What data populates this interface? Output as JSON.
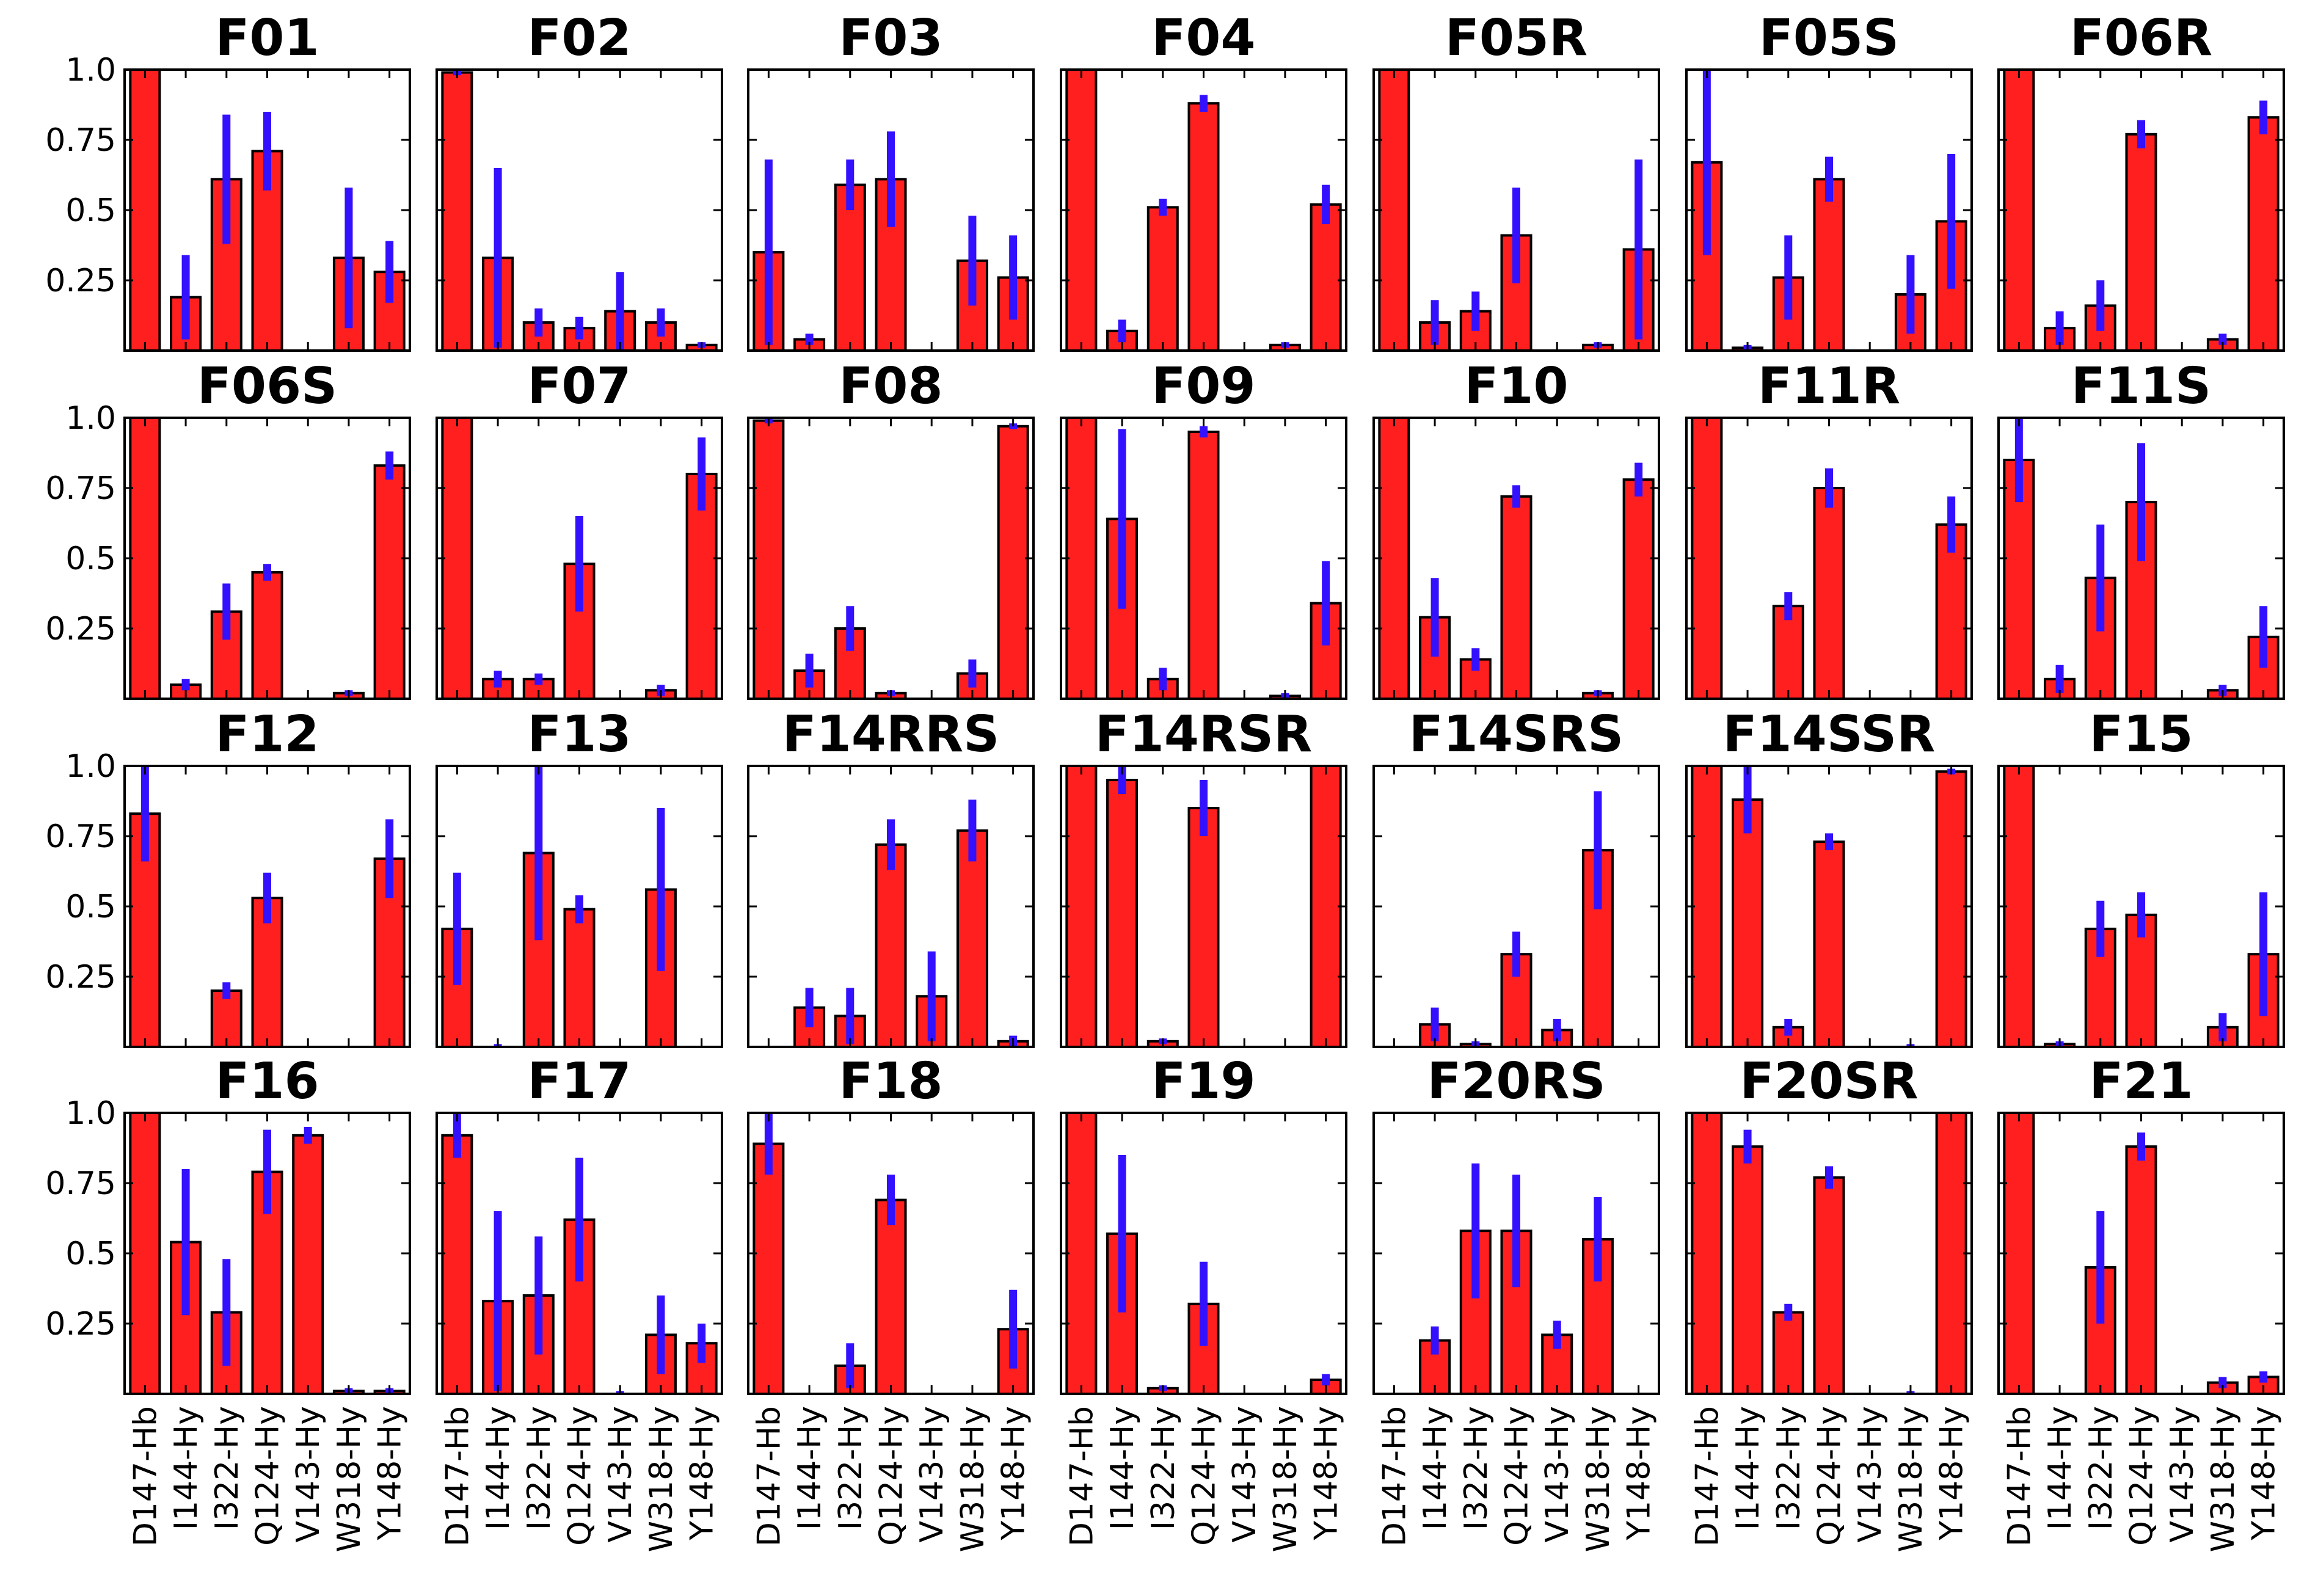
{
  "figure": {
    "layout": {
      "rows": 4,
      "cols": 7
    },
    "colors": {
      "bar": "#ff1f1f",
      "bar_edge": "#000000",
      "error": "#3311ff",
      "axes": "#000000"
    },
    "yticks": [
      0.25,
      0.5,
      0.75,
      1.0
    ],
    "ytick_labels": [
      "0.25",
      "0.5",
      "0.75",
      "1.0"
    ],
    "categories": [
      "D147-Hb",
      "I144-Hy",
      "I322-Hy",
      "Q124-Hy",
      "V143-Hy",
      "W318-Hy",
      "Y148-Hy"
    ]
  },
  "chart_data": [
    {
      "type": "bar",
      "title": "F01",
      "ylim": [
        0,
        1
      ],
      "categories": [
        "D147-Hb",
        "I144-Hy",
        "I322-Hy",
        "Q124-Hy",
        "V143-Hy",
        "W318-Hy",
        "Y148-Hy"
      ],
      "values": [
        1.0,
        0.19,
        0.61,
        0.71,
        0.0,
        0.33,
        0.28
      ],
      "errors": [
        0.0,
        0.15,
        0.23,
        0.14,
        0.0,
        0.25,
        0.11
      ]
    },
    {
      "type": "bar",
      "title": "F02",
      "ylim": [
        0,
        1
      ],
      "categories": [
        "D147-Hb",
        "I144-Hy",
        "I322-Hy",
        "Q124-Hy",
        "V143-Hy",
        "W318-Hy",
        "Y148-Hy"
      ],
      "values": [
        0.99,
        0.33,
        0.1,
        0.08,
        0.14,
        0.1,
        0.02
      ],
      "errors": [
        0.01,
        0.32,
        0.05,
        0.04,
        0.14,
        0.05,
        0.01
      ]
    },
    {
      "type": "bar",
      "title": "F03",
      "ylim": [
        0,
        1
      ],
      "categories": [
        "D147-Hb",
        "I144-Hy",
        "I322-Hy",
        "Q124-Hy",
        "V143-Hy",
        "W318-Hy",
        "Y148-Hy"
      ],
      "values": [
        0.35,
        0.04,
        0.59,
        0.61,
        0.0,
        0.32,
        0.26
      ],
      "errors": [
        0.33,
        0.02,
        0.09,
        0.17,
        0.0,
        0.16,
        0.15
      ]
    },
    {
      "type": "bar",
      "title": "F04",
      "ylim": [
        0,
        1
      ],
      "categories": [
        "D147-Hb",
        "I144-Hy",
        "I322-Hy",
        "Q124-Hy",
        "V143-Hy",
        "W318-Hy",
        "Y148-Hy"
      ],
      "values": [
        1.0,
        0.07,
        0.51,
        0.88,
        0.0,
        0.02,
        0.52
      ],
      "errors": [
        0.0,
        0.04,
        0.03,
        0.03,
        0.0,
        0.01,
        0.07
      ]
    },
    {
      "type": "bar",
      "title": "F05R",
      "ylim": [
        0,
        1
      ],
      "categories": [
        "D147-Hb",
        "I144-Hy",
        "I322-Hy",
        "Q124-Hy",
        "V143-Hy",
        "W318-Hy",
        "Y148-Hy"
      ],
      "values": [
        1.0,
        0.1,
        0.14,
        0.41,
        0.0,
        0.02,
        0.36
      ],
      "errors": [
        0.0,
        0.08,
        0.07,
        0.17,
        0.0,
        0.01,
        0.32
      ]
    },
    {
      "type": "bar",
      "title": "F05S",
      "ylim": [
        0,
        1
      ],
      "categories": [
        "D147-Hb",
        "I144-Hy",
        "I322-Hy",
        "Q124-Hy",
        "V143-Hy",
        "W318-Hy",
        "Y148-Hy"
      ],
      "values": [
        0.67,
        0.01,
        0.26,
        0.61,
        0.0,
        0.2,
        0.46
      ],
      "errors": [
        0.33,
        0.01,
        0.15,
        0.08,
        0.0,
        0.14,
        0.24
      ]
    },
    {
      "type": "bar",
      "title": "F06R",
      "ylim": [
        0,
        1
      ],
      "categories": [
        "D147-Hb",
        "I144-Hy",
        "I322-Hy",
        "Q124-Hy",
        "V143-Hy",
        "W318-Hy",
        "Y148-Hy"
      ],
      "values": [
        1.0,
        0.08,
        0.16,
        0.77,
        0.0,
        0.04,
        0.83
      ],
      "errors": [
        0.0,
        0.06,
        0.09,
        0.05,
        0.0,
        0.02,
        0.06
      ]
    },
    {
      "type": "bar",
      "title": "F06S",
      "ylim": [
        0,
        1
      ],
      "categories": [
        "D147-Hb",
        "I144-Hy",
        "I322-Hy",
        "Q124-Hy",
        "V143-Hy",
        "W318-Hy",
        "Y148-Hy"
      ],
      "values": [
        1.0,
        0.05,
        0.31,
        0.45,
        0.0,
        0.02,
        0.83
      ],
      "errors": [
        0.0,
        0.02,
        0.1,
        0.03,
        0.0,
        0.01,
        0.05
      ]
    },
    {
      "type": "bar",
      "title": "F07",
      "ylim": [
        0,
        1
      ],
      "categories": [
        "D147-Hb",
        "I144-Hy",
        "I322-Hy",
        "Q124-Hy",
        "V143-Hy",
        "W318-Hy",
        "Y148-Hy"
      ],
      "values": [
        1.0,
        0.07,
        0.07,
        0.48,
        0.0,
        0.03,
        0.8
      ],
      "errors": [
        0.0,
        0.03,
        0.02,
        0.17,
        0.0,
        0.02,
        0.13
      ]
    },
    {
      "type": "bar",
      "title": "F08",
      "ylim": [
        0,
        1
      ],
      "categories": [
        "D147-Hb",
        "I144-Hy",
        "I322-Hy",
        "Q124-Hy",
        "V143-Hy",
        "W318-Hy",
        "Y148-Hy"
      ],
      "values": [
        0.99,
        0.1,
        0.25,
        0.02,
        0.0,
        0.09,
        0.97
      ],
      "errors": [
        0.01,
        0.06,
        0.08,
        0.01,
        0.0,
        0.05,
        0.01
      ]
    },
    {
      "type": "bar",
      "title": "F09",
      "ylim": [
        0,
        1
      ],
      "categories": [
        "D147-Hb",
        "I144-Hy",
        "I322-Hy",
        "Q124-Hy",
        "V143-Hy",
        "W318-Hy",
        "Y148-Hy"
      ],
      "values": [
        1.0,
        0.64,
        0.07,
        0.95,
        0.0,
        0.01,
        0.34
      ],
      "errors": [
        0.0,
        0.32,
        0.04,
        0.02,
        0.0,
        0.01,
        0.15
      ]
    },
    {
      "type": "bar",
      "title": "F10",
      "ylim": [
        0,
        1
      ],
      "categories": [
        "D147-Hb",
        "I144-Hy",
        "I322-Hy",
        "Q124-Hy",
        "V143-Hy",
        "W318-Hy",
        "Y148-Hy"
      ],
      "values": [
        1.0,
        0.29,
        0.14,
        0.72,
        0.0,
        0.02,
        0.78
      ],
      "errors": [
        0.0,
        0.14,
        0.04,
        0.04,
        0.0,
        0.01,
        0.06
      ]
    },
    {
      "type": "bar",
      "title": "F11R",
      "ylim": [
        0,
        1
      ],
      "categories": [
        "D147-Hb",
        "I144-Hy",
        "I322-Hy",
        "Q124-Hy",
        "V143-Hy",
        "W318-Hy",
        "Y148-Hy"
      ],
      "values": [
        1.0,
        0.0,
        0.33,
        0.75,
        0.0,
        0.0,
        0.62
      ],
      "errors": [
        0.0,
        0.0,
        0.05,
        0.07,
        0.0,
        0.0,
        0.1
      ]
    },
    {
      "type": "bar",
      "title": "F11S",
      "ylim": [
        0,
        1
      ],
      "categories": [
        "D147-Hb",
        "I144-Hy",
        "I322-Hy",
        "Q124-Hy",
        "V143-Hy",
        "W318-Hy",
        "Y148-Hy"
      ],
      "values": [
        0.85,
        0.07,
        0.43,
        0.7,
        0.0,
        0.03,
        0.22
      ],
      "errors": [
        0.15,
        0.05,
        0.19,
        0.21,
        0.0,
        0.02,
        0.11
      ]
    },
    {
      "type": "bar",
      "title": "F12",
      "ylim": [
        0,
        1
      ],
      "categories": [
        "D147-Hb",
        "I144-Hy",
        "I322-Hy",
        "Q124-Hy",
        "V143-Hy",
        "W318-Hy",
        "Y148-Hy"
      ],
      "values": [
        0.83,
        0.0,
        0.2,
        0.53,
        0.0,
        0.0,
        0.67
      ],
      "errors": [
        0.17,
        0.0,
        0.03,
        0.09,
        0.0,
        0.0,
        0.14
      ]
    },
    {
      "type": "bar",
      "title": "F13",
      "ylim": [
        0,
        1
      ],
      "categories": [
        "D147-Hb",
        "I144-Hy",
        "I322-Hy",
        "Q124-Hy",
        "V143-Hy",
        "W318-Hy",
        "Y148-Hy"
      ],
      "values": [
        0.42,
        0.0,
        0.69,
        0.49,
        0.0,
        0.56,
        0.0
      ],
      "errors": [
        0.2,
        0.01,
        0.31,
        0.05,
        0.0,
        0.29,
        0.0
      ]
    },
    {
      "type": "bar",
      "title": "F14RRS",
      "ylim": [
        0,
        1
      ],
      "categories": [
        "D147-Hb",
        "I144-Hy",
        "I322-Hy",
        "Q124-Hy",
        "V143-Hy",
        "W318-Hy",
        "Y148-Hy"
      ],
      "values": [
        0.0,
        0.14,
        0.11,
        0.72,
        0.18,
        0.77,
        0.02
      ],
      "errors": [
        0.0,
        0.07,
        0.1,
        0.09,
        0.16,
        0.11,
        0.02
      ]
    },
    {
      "type": "bar",
      "title": "F14RSR",
      "ylim": [
        0,
        1
      ],
      "categories": [
        "D147-Hb",
        "I144-Hy",
        "I322-Hy",
        "Q124-Hy",
        "V143-Hy",
        "W318-Hy",
        "Y148-Hy"
      ],
      "values": [
        1.0,
        0.95,
        0.02,
        0.85,
        0.0,
        0.0,
        1.0
      ],
      "errors": [
        0.0,
        0.05,
        0.01,
        0.1,
        0.0,
        0.0,
        0.0
      ]
    },
    {
      "type": "bar",
      "title": "F14SRS",
      "ylim": [
        0,
        1
      ],
      "categories": [
        "D147-Hb",
        "I144-Hy",
        "I322-Hy",
        "Q124-Hy",
        "V143-Hy",
        "W318-Hy",
        "Y148-Hy"
      ],
      "values": [
        0.0,
        0.08,
        0.01,
        0.33,
        0.06,
        0.7,
        0.0
      ],
      "errors": [
        0.0,
        0.06,
        0.01,
        0.08,
        0.04,
        0.21,
        0.0
      ]
    },
    {
      "type": "bar",
      "title": "F14SSR",
      "ylim": [
        0,
        1
      ],
      "categories": [
        "D147-Hb",
        "I144-Hy",
        "I322-Hy",
        "Q124-Hy",
        "V143-Hy",
        "W318-Hy",
        "Y148-Hy"
      ],
      "values": [
        1.0,
        0.88,
        0.07,
        0.73,
        0.0,
        0.0,
        0.98
      ],
      "errors": [
        0.0,
        0.12,
        0.03,
        0.03,
        0.0,
        0.01,
        0.01
      ]
    },
    {
      "type": "bar",
      "title": "F15",
      "ylim": [
        0,
        1
      ],
      "categories": [
        "D147-Hb",
        "I144-Hy",
        "I322-Hy",
        "Q124-Hy",
        "V143-Hy",
        "W318-Hy",
        "Y148-Hy"
      ],
      "values": [
        1.0,
        0.01,
        0.42,
        0.47,
        0.0,
        0.07,
        0.33
      ],
      "errors": [
        0.0,
        0.01,
        0.1,
        0.08,
        0.0,
        0.05,
        0.22
      ]
    },
    {
      "type": "bar",
      "title": "F16",
      "ylim": [
        0,
        1
      ],
      "categories": [
        "D147-Hb",
        "I144-Hy",
        "I322-Hy",
        "Q124-Hy",
        "V143-Hy",
        "W318-Hy",
        "Y148-Hy"
      ],
      "values": [
        1.0,
        0.54,
        0.29,
        0.79,
        0.92,
        0.01,
        0.01
      ],
      "errors": [
        0.0,
        0.26,
        0.19,
        0.15,
        0.03,
        0.01,
        0.01
      ]
    },
    {
      "type": "bar",
      "title": "F17",
      "ylim": [
        0,
        1
      ],
      "categories": [
        "D147-Hb",
        "I144-Hy",
        "I322-Hy",
        "Q124-Hy",
        "V143-Hy",
        "W318-Hy",
        "Y148-Hy"
      ],
      "values": [
        0.92,
        0.33,
        0.35,
        0.62,
        0.0,
        0.21,
        0.18
      ],
      "errors": [
        0.08,
        0.32,
        0.21,
        0.22,
        0.01,
        0.14,
        0.07
      ]
    },
    {
      "type": "bar",
      "title": "F18",
      "ylim": [
        0,
        1
      ],
      "categories": [
        "D147-Hb",
        "I144-Hy",
        "I322-Hy",
        "Q124-Hy",
        "V143-Hy",
        "W318-Hy",
        "Y148-Hy"
      ],
      "values": [
        0.89,
        0.0,
        0.1,
        0.69,
        0.0,
        0.0,
        0.23
      ],
      "errors": [
        0.11,
        0.0,
        0.08,
        0.09,
        0.0,
        0.0,
        0.14
      ]
    },
    {
      "type": "bar",
      "title": "F19",
      "ylim": [
        0,
        1
      ],
      "categories": [
        "D147-Hb",
        "I144-Hy",
        "I322-Hy",
        "Q124-Hy",
        "V143-Hy",
        "W318-Hy",
        "Y148-Hy"
      ],
      "values": [
        1.0,
        0.57,
        0.02,
        0.32,
        0.0,
        0.0,
        0.05
      ],
      "errors": [
        0.0,
        0.28,
        0.01,
        0.15,
        0.0,
        0.0,
        0.02
      ]
    },
    {
      "type": "bar",
      "title": "F20RS",
      "ylim": [
        0,
        1
      ],
      "categories": [
        "D147-Hb",
        "I144-Hy",
        "I322-Hy",
        "Q124-Hy",
        "V143-Hy",
        "W318-Hy",
        "Y148-Hy"
      ],
      "values": [
        0.0,
        0.19,
        0.58,
        0.58,
        0.21,
        0.55,
        0.0
      ],
      "errors": [
        0.0,
        0.05,
        0.24,
        0.2,
        0.05,
        0.15,
        0.0
      ]
    },
    {
      "type": "bar",
      "title": "F20SR",
      "ylim": [
        0,
        1
      ],
      "categories": [
        "D147-Hb",
        "I144-Hy",
        "I322-Hy",
        "Q124-Hy",
        "V143-Hy",
        "W318-Hy",
        "Y148-Hy"
      ],
      "values": [
        1.0,
        0.88,
        0.29,
        0.77,
        0.0,
        0.0,
        1.0
      ],
      "errors": [
        0.0,
        0.06,
        0.03,
        0.04,
        0.0,
        0.01,
        0.0
      ]
    },
    {
      "type": "bar",
      "title": "F21",
      "ylim": [
        0,
        1
      ],
      "categories": [
        "D147-Hb",
        "I144-Hy",
        "I322-Hy",
        "Q124-Hy",
        "V143-Hy",
        "W318-Hy",
        "Y148-Hy"
      ],
      "values": [
        1.0,
        0.0,
        0.45,
        0.88,
        0.0,
        0.04,
        0.06
      ],
      "errors": [
        0.0,
        0.0,
        0.2,
        0.05,
        0.0,
        0.02,
        0.02
      ]
    }
  ]
}
